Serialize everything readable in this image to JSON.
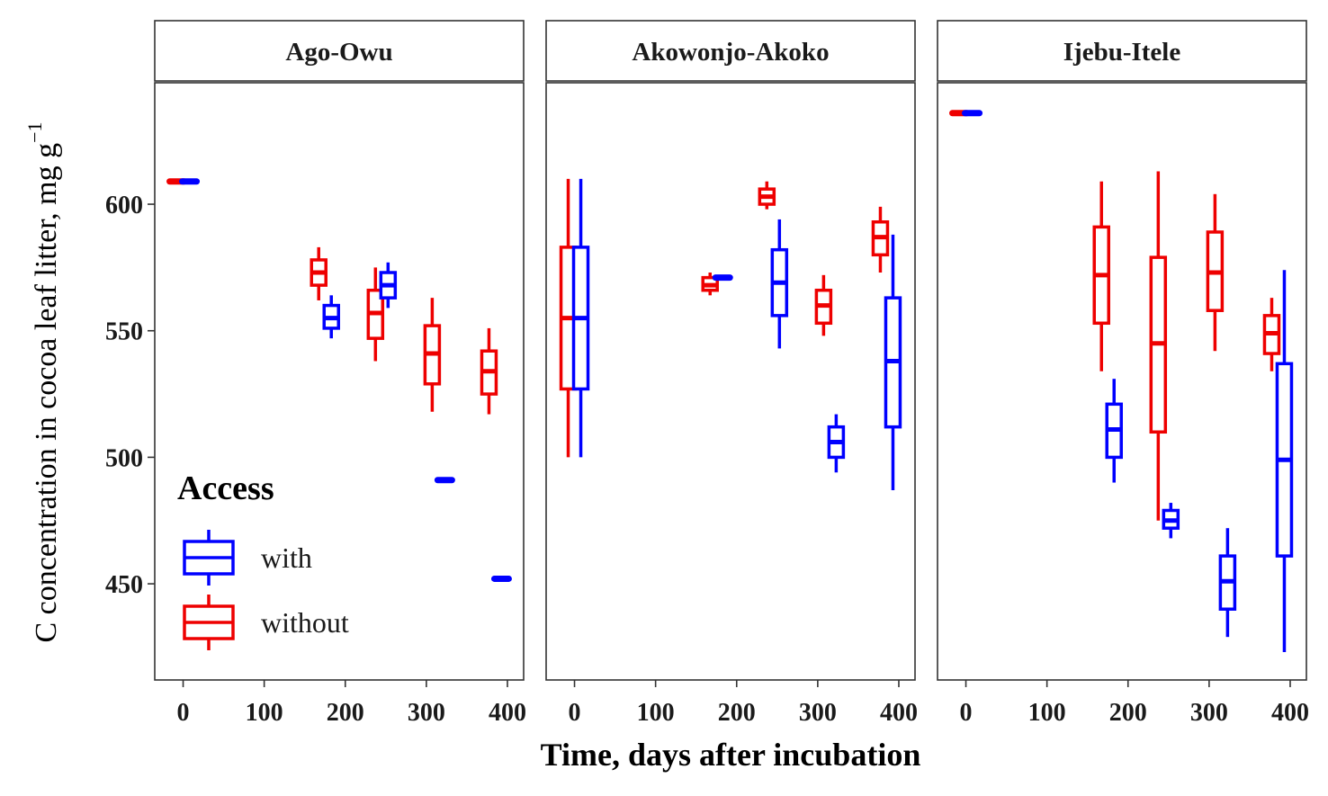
{
  "chart_data": {
    "type": "boxplot",
    "xlabel": "Time, days after incubation",
    "ylabel": "C concentration in cocoa leaf litter, mg g",
    "ylabel_superscript": "−1",
    "xlim": [
      -35,
      420
    ],
    "ylim": [
      412,
      648
    ],
    "x_ticks": [
      0,
      100,
      200,
      300,
      400
    ],
    "y_ticks": [
      450,
      500,
      550,
      600
    ],
    "grid": false,
    "legend": {
      "title": "Access",
      "position": "bottom-left inside first panel",
      "items": [
        {
          "label": "with",
          "color": "#0000FF"
        },
        {
          "label": "without",
          "color": "#EE0000"
        }
      ]
    },
    "colors": {
      "with": "#0000FF",
      "without": "#EE0000"
    },
    "panels": [
      {
        "title": "Ago-Owu",
        "boxes": [
          {
            "group": "without",
            "x": 0,
            "min": 609,
            "q1": 609,
            "median": 609,
            "q3": 609,
            "max": 609
          },
          {
            "group": "with",
            "x": 0,
            "min": 609,
            "q1": 609,
            "median": 609,
            "q3": 609,
            "max": 609
          },
          {
            "group": "without",
            "x": 175,
            "min": 562,
            "q1": 568,
            "median": 573,
            "q3": 578,
            "max": 583
          },
          {
            "group": "with",
            "x": 175,
            "min": 547,
            "q1": 551,
            "median": 555,
            "q3": 560,
            "max": 564
          },
          {
            "group": "without",
            "x": 245,
            "min": 538,
            "q1": 547,
            "median": 557,
            "q3": 566,
            "max": 575
          },
          {
            "group": "with",
            "x": 245,
            "min": 559,
            "q1": 563,
            "median": 568,
            "q3": 573,
            "max": 577
          },
          {
            "group": "without",
            "x": 315,
            "min": 518,
            "q1": 529,
            "median": 541,
            "q3": 552,
            "max": 563
          },
          {
            "group": "with",
            "x": 315,
            "min": 490,
            "q1": 490,
            "median": 491,
            "q3": 491,
            "max": 491
          },
          {
            "group": "without",
            "x": 385,
            "min": 517,
            "q1": 525,
            "median": 534,
            "q3": 542,
            "max": 551
          },
          {
            "group": "with",
            "x": 385,
            "min": 451,
            "q1": 451,
            "median": 452,
            "q3": 452,
            "max": 452
          }
        ]
      },
      {
        "title": "Akowonjo-Akoko",
        "boxes": [
          {
            "group": "without",
            "x": 0,
            "min": 500,
            "q1": 527,
            "median": 555,
            "q3": 583,
            "max": 610
          },
          {
            "group": "with",
            "x": 0,
            "min": 500,
            "q1": 527,
            "median": 555,
            "q3": 583,
            "max": 610
          },
          {
            "group": "without",
            "x": 175,
            "min": 564,
            "q1": 566,
            "median": 568,
            "q3": 571,
            "max": 573
          },
          {
            "group": "with",
            "x": 175,
            "min": 571,
            "q1": 571,
            "median": 571,
            "q3": 571,
            "max": 571
          },
          {
            "group": "without",
            "x": 245,
            "min": 598,
            "q1": 600,
            "median": 603,
            "q3": 606,
            "max": 609
          },
          {
            "group": "with",
            "x": 245,
            "min": 543,
            "q1": 556,
            "median": 569,
            "q3": 582,
            "max": 594
          },
          {
            "group": "without",
            "x": 315,
            "min": 548,
            "q1": 553,
            "median": 560,
            "q3": 566,
            "max": 572
          },
          {
            "group": "with",
            "x": 315,
            "min": 494,
            "q1": 500,
            "median": 506,
            "q3": 512,
            "max": 517
          },
          {
            "group": "without",
            "x": 385,
            "min": 573,
            "q1": 580,
            "median": 587,
            "q3": 593,
            "max": 599
          },
          {
            "group": "with",
            "x": 385,
            "min": 487,
            "q1": 512,
            "median": 538,
            "q3": 563,
            "max": 588
          }
        ]
      },
      {
        "title": "Ijebu-Itele",
        "boxes": [
          {
            "group": "without",
            "x": 0,
            "min": 636,
            "q1": 636,
            "median": 636,
            "q3": 636,
            "max": 636
          },
          {
            "group": "with",
            "x": 0,
            "min": 636,
            "q1": 636,
            "median": 636,
            "q3": 636,
            "max": 636
          },
          {
            "group": "without",
            "x": 175,
            "min": 534,
            "q1": 553,
            "median": 572,
            "q3": 591,
            "max": 609
          },
          {
            "group": "with",
            "x": 175,
            "min": 490,
            "q1": 500,
            "median": 511,
            "q3": 521,
            "max": 531
          },
          {
            "group": "without",
            "x": 245,
            "min": 475,
            "q1": 510,
            "median": 545,
            "q3": 579,
            "max": 613
          },
          {
            "group": "with",
            "x": 245,
            "min": 468,
            "q1": 472,
            "median": 475,
            "q3": 479,
            "max": 482
          },
          {
            "group": "without",
            "x": 315,
            "min": 542,
            "q1": 558,
            "median": 573,
            "q3": 589,
            "max": 604
          },
          {
            "group": "with",
            "x": 315,
            "min": 429,
            "q1": 440,
            "median": 451,
            "q3": 461,
            "max": 472
          },
          {
            "group": "without",
            "x": 385,
            "min": 534,
            "q1": 541,
            "median": 549,
            "q3": 556,
            "max": 563
          },
          {
            "group": "with",
            "x": 385,
            "min": 423,
            "q1": 461,
            "median": 499,
            "q3": 537,
            "max": 574
          }
        ]
      }
    ]
  }
}
